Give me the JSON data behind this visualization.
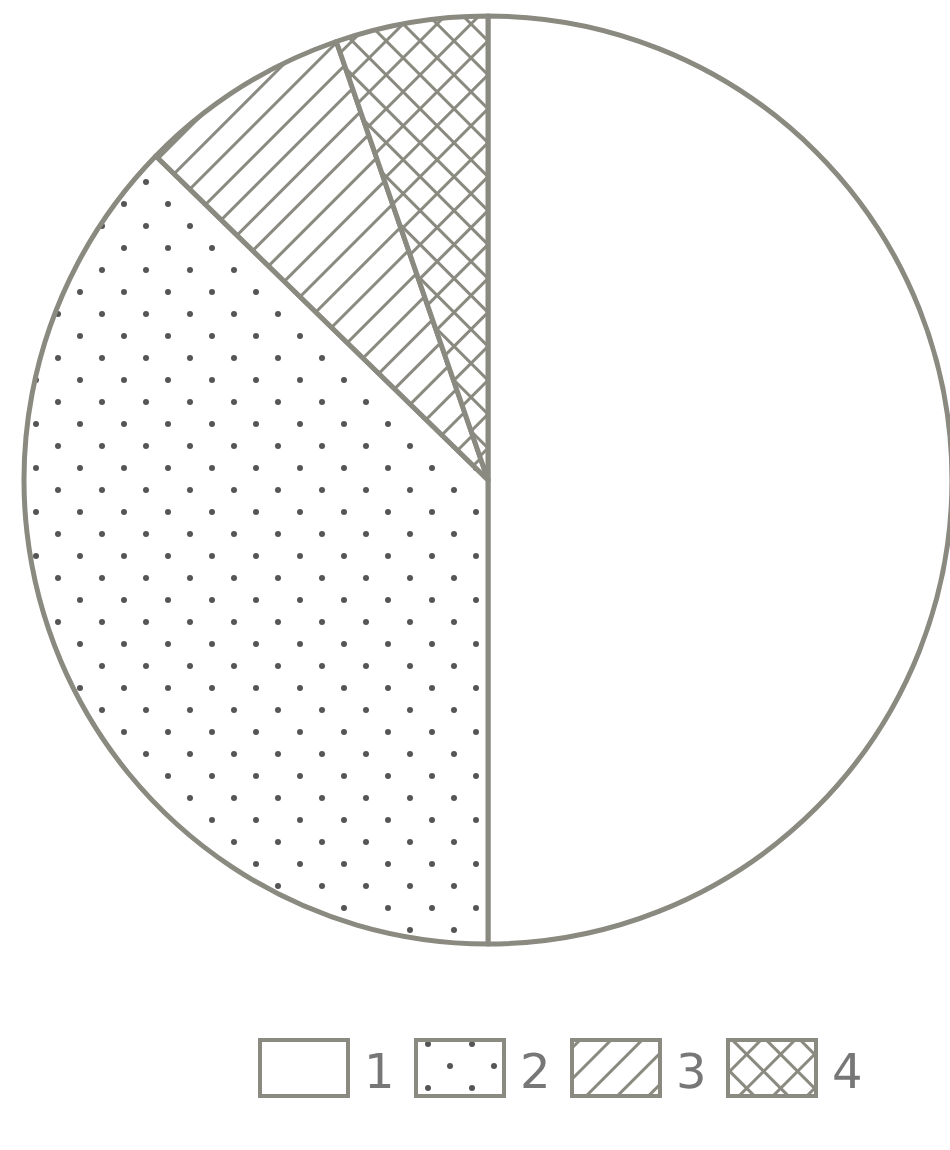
{
  "chart_data": {
    "type": "pie",
    "categories": [
      "1",
      "2",
      "3",
      "4"
    ],
    "values": [
      50,
      37.3,
      7.4,
      5.3
    ],
    "legend": "bottom"
  }
}
